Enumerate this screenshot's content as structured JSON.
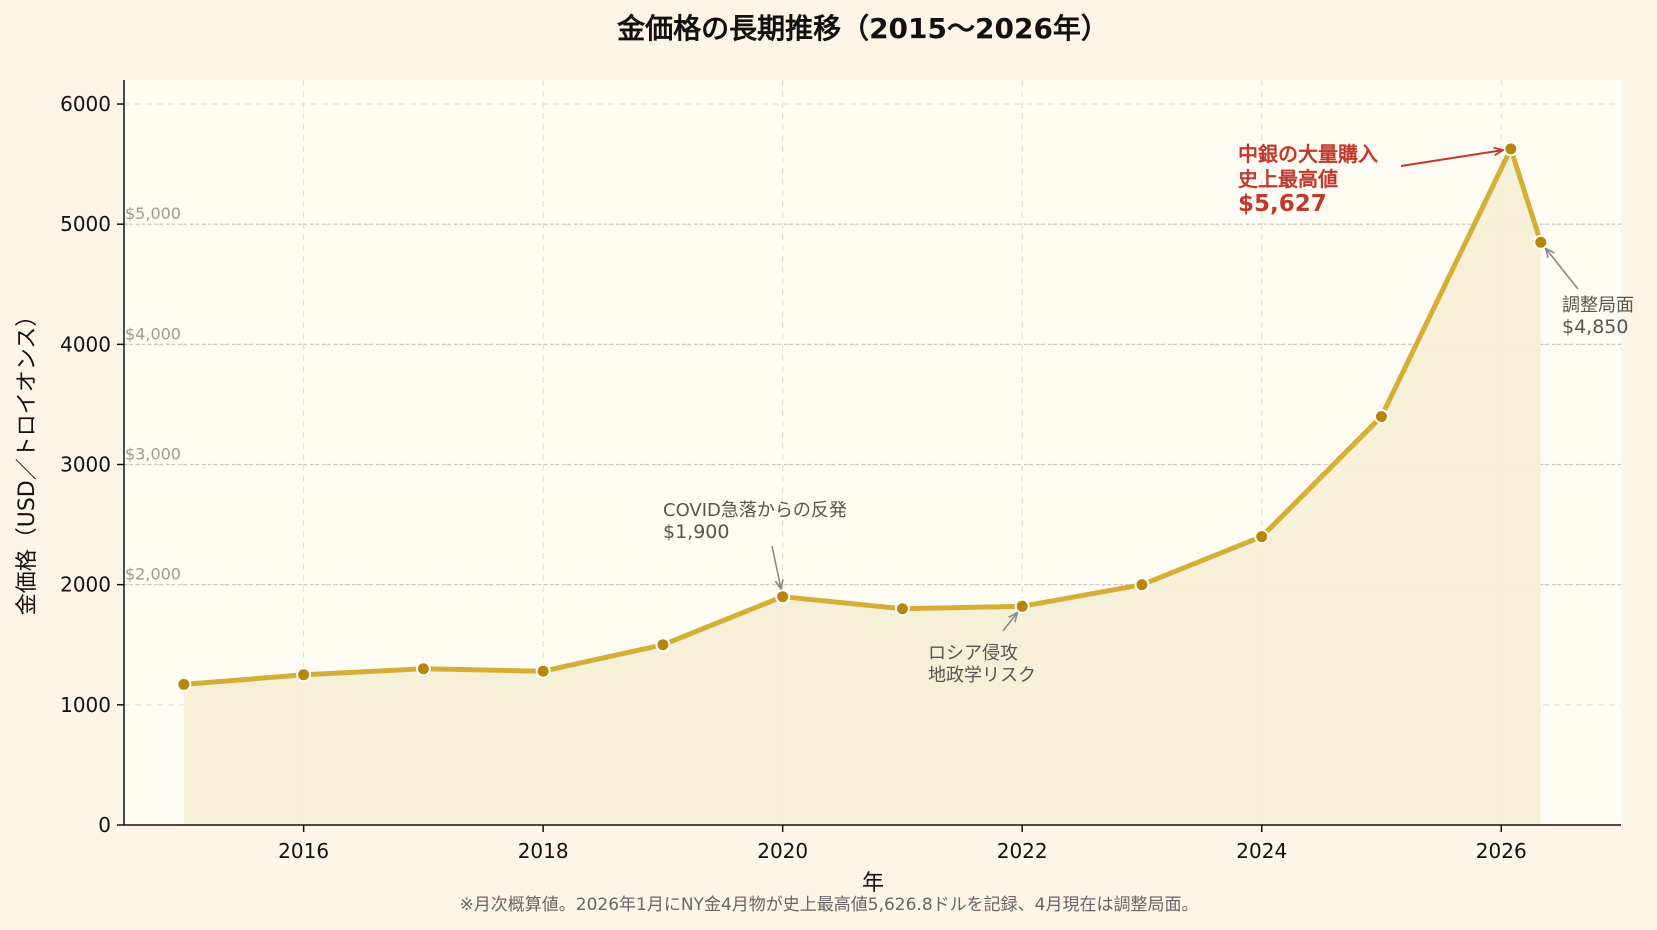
{
  "chart_data": {
    "type": "line",
    "title": "金価格の長期推移（2015〜2026年）",
    "xlabel": "年",
    "ylabel": "金価格（USD／トロイオンス）",
    "xlim": [
      2014.5,
      2027.0
    ],
    "ylim": [
      0,
      6200
    ],
    "x_ticks": [
      2016,
      2018,
      2020,
      2022,
      2024,
      2026
    ],
    "y_ticks": [
      0,
      1000,
      2000,
      3000,
      4000,
      5000,
      6000
    ],
    "grid": true,
    "line_color": "#d4af37",
    "marker_color": "#b8860b",
    "fill_color": "#f7efd6",
    "plot_background": "#fffcf3",
    "reference_lines": [
      {
        "value": 2000,
        "label": "$2,000"
      },
      {
        "value": 3000,
        "label": "$3,000"
      },
      {
        "value": 4000,
        "label": "$4,000"
      },
      {
        "value": 5000,
        "label": "$5,000"
      }
    ],
    "series": [
      {
        "x": [
          2015,
          2016,
          2017,
          2018,
          2019,
          2020,
          2021,
          2022,
          2023,
          2024,
          2025,
          2026.08,
          2026.33
        ],
        "values": [
          1170,
          1250,
          1300,
          1280,
          1500,
          1900,
          1800,
          1820,
          2000,
          2400,
          3400,
          5627,
          4850
        ]
      }
    ],
    "annotations": [
      {
        "lines": [
          "COVID急落からの反発",
          "$1,900"
        ],
        "color": "#555555",
        "point": [
          2020,
          1900
        ]
      },
      {
        "lines": [
          "ロシア侵攻",
          "地政学リスク"
        ],
        "color": "#555555",
        "point": [
          2022,
          1820
        ]
      },
      {
        "lines": [
          "中銀の大量購入",
          "史上最高値",
          "$5,627"
        ],
        "color": "#c0392b",
        "point": [
          2026.08,
          5627
        ]
      },
      {
        "lines": [
          "調整局面",
          "$4,850"
        ],
        "color": "#555555",
        "point": [
          2026.33,
          4850
        ]
      }
    ],
    "footnote": "※月次概算値。2026年1月にNY金4月物が史上最高値5,626.8ドルを記録、4月現在は調整局面。"
  }
}
